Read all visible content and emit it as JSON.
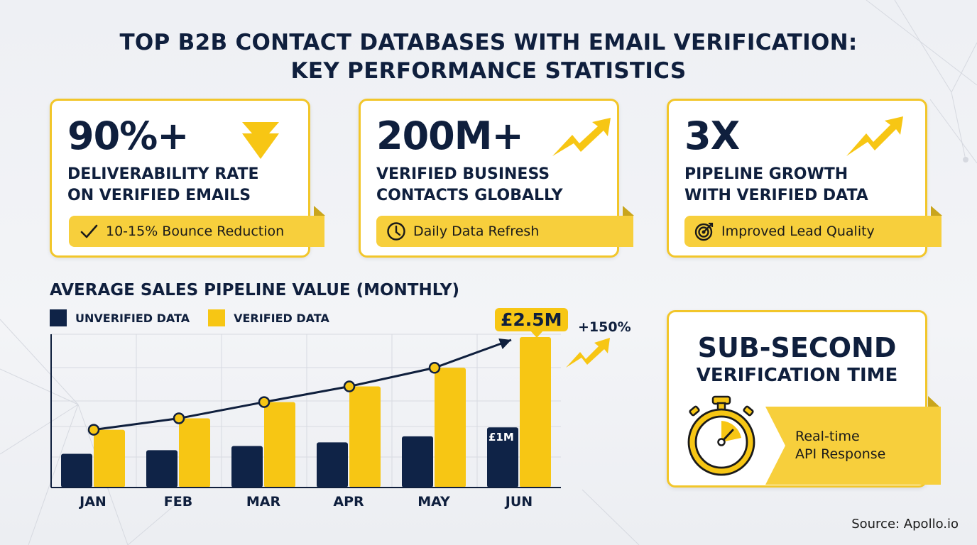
{
  "header": {
    "title_line1": "TOP B2B CONTACT DATABASES WITH EMAIL VERIFICATION:",
    "title_line2": "KEY PERFORMANCE STATISTICS"
  },
  "stat_cards": [
    {
      "value": "90%+",
      "label_line1": "DELIVERABILITY RATE",
      "label_line2": "ON VERIFIED EMAILS",
      "badge": "10-15% Bounce Reduction",
      "badge_icon": "checkmark-icon",
      "deco_icon": "down-arrow-icon"
    },
    {
      "value": "200M+",
      "label_line1": "VERIFIED BUSINESS",
      "label_line2": "CONTACTS GLOBALLY",
      "badge": "Daily Data Refresh",
      "badge_icon": "clock-icon",
      "deco_icon": "trend-up-arrow-icon"
    },
    {
      "value": "3X",
      "label_line1": "PIPELINE GROWTH",
      "label_line2": "WITH VERIFIED DATA",
      "badge": "Improved Lead Quality",
      "badge_icon": "target-icon",
      "deco_icon": "trend-up-arrow-icon"
    }
  ],
  "verification_card": {
    "title_line1": "SUB-SECOND",
    "title_line2": "VERIFICATION TIME",
    "ribbon_line1": "Real-time",
    "ribbon_line2": "API Response",
    "icon": "stopwatch-icon"
  },
  "chart": {
    "title": "AVERAGE SALES PIPELINE VALUE (MONTHLY)",
    "legend": {
      "unverified": "UNVERIFIED DATA",
      "verified": "VERIFIED DATA"
    },
    "callout": "£2.5M",
    "growth": "+150%",
    "inbar_label": "£1M"
  },
  "chart_data": {
    "type": "bar",
    "title": "AVERAGE SALES PIPELINE VALUE (MONTHLY)",
    "xlabel": "",
    "ylabel": "",
    "categories": [
      "JAN",
      "FEB",
      "MAR",
      "APR",
      "MAY",
      "JUN"
    ],
    "series": [
      {
        "name": "UNVERIFIED DATA",
        "color": "#0f2347",
        "values": [
          0.56,
          0.62,
          0.69,
          0.75,
          0.85,
          1.0
        ]
      },
      {
        "name": "VERIFIED DATA",
        "color": "#f7c614",
        "values": [
          0.96,
          1.15,
          1.42,
          1.68,
          1.99,
          2.5
        ]
      }
    ],
    "trend_line": {
      "series": "VERIFIED DATA",
      "markers": true,
      "arrow_end": true
    },
    "annotations": [
      {
        "label": "£2.5M",
        "target": "JUN VERIFIED DATA"
      },
      {
        "label": "£1M",
        "target": "JUN UNVERIFIED DATA"
      },
      {
        "label": "+150%",
        "target": "growth"
      }
    ],
    "units": "£M",
    "ylim": [
      0,
      2.5
    ],
    "grid": true,
    "legend_position": "top-left"
  },
  "colors": {
    "navy": "#0f1f3d",
    "bar_navy": "#0f2347",
    "yellow": "#f7c614",
    "ribbon_yellow": "#f7cf3c",
    "border_yellow": "#f2c62a"
  },
  "footer": {
    "source": "Source: Apollo.io"
  }
}
